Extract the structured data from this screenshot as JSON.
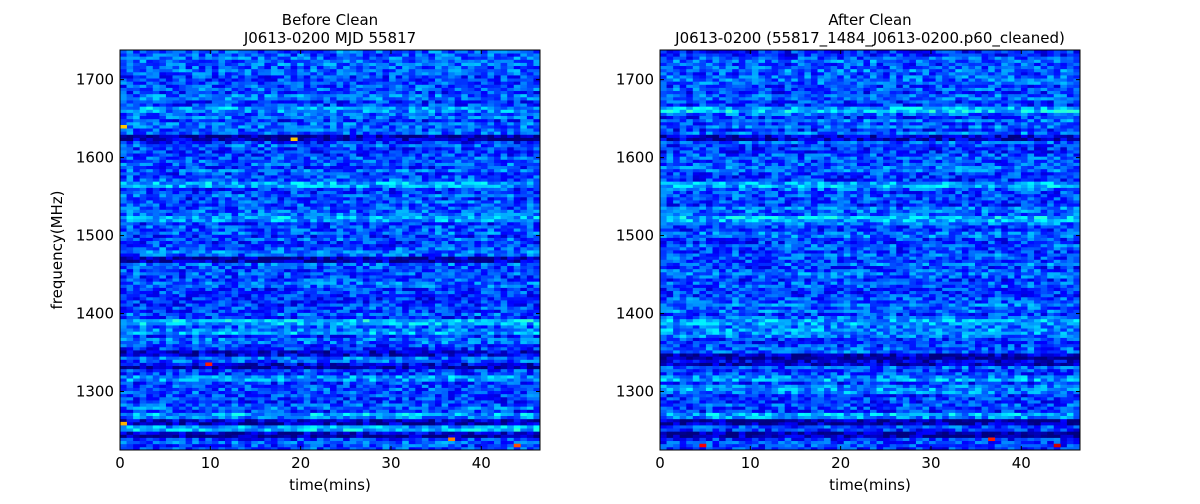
{
  "chart_data": [
    {
      "type": "heatmap",
      "title_lines": [
        "Before Clean",
        "J0613-0200 MJD 55817"
      ],
      "xlabel": "time(mins)",
      "ylabel": "frequency(MHz)",
      "xlim": [
        0,
        46.5
      ],
      "ylim": [
        1225,
        1738
      ],
      "xticks": [
        0,
        10,
        20,
        30,
        40
      ],
      "xtick_labels": [
        "0",
        "10",
        "20",
        "30",
        "40"
      ],
      "yticks": [
        1300,
        1400,
        1500,
        1600,
        1700
      ],
      "ytick_labels": [
        "1300",
        "1400",
        "1500",
        "1600",
        "1700"
      ],
      "colormap": "jet",
      "grid": false,
      "n_time_bins": 64,
      "n_freq_channels": 128,
      "bright_channels_mhz": [
        1523,
        1567,
        1663,
        1390,
        1378,
        1318,
        1270,
        1252
      ],
      "cold_channels_mhz": [
        1625,
        1470,
        1348,
        1332,
        1262,
        1245
      ],
      "hot_pixels": [
        {
          "time": 0.5,
          "freq": 1640,
          "level": 0.68
        },
        {
          "time": 19.0,
          "freq": 1623,
          "level": 0.68
        },
        {
          "time": 9.5,
          "freq": 1335,
          "level": 0.85
        },
        {
          "time": 37.0,
          "freq": 1240,
          "level": 0.75
        },
        {
          "time": 44.0,
          "freq": 1232,
          "level": 0.8
        },
        {
          "time": 0.5,
          "freq": 1258,
          "level": 0.7
        }
      ]
    },
    {
      "type": "heatmap",
      "title_lines": [
        "After Clean",
        "J0613-0200  (55817_1484_J0613-0200.p60_cleaned)"
      ],
      "xlabel": "time(mins)",
      "ylabel": "",
      "xlim": [
        0,
        46.5
      ],
      "ylim": [
        1225,
        1738
      ],
      "xticks": [
        0,
        10,
        20,
        30,
        40
      ],
      "xtick_labels": [
        "0",
        "10",
        "20",
        "30",
        "40"
      ],
      "yticks": [
        1300,
        1400,
        1500,
        1600,
        1700
      ],
      "ytick_labels": [
        "1300",
        "1400",
        "1500",
        "1600",
        "1700"
      ],
      "colormap": "jet",
      "grid": false,
      "n_time_bins": 64,
      "n_freq_channels": 128,
      "bright_channels_mhz": [
        1523,
        1567,
        1663,
        1390,
        1378,
        1318,
        1300,
        1270
      ],
      "cold_channels_mhz": [
        1625,
        1345,
        1338,
        1262,
        1245
      ],
      "hot_pixels": [
        {
          "time": 37.0,
          "freq": 1240,
          "level": 0.85
        },
        {
          "time": 44.0,
          "freq": 1232,
          "level": 0.92
        },
        {
          "time": 5.0,
          "freq": 1232,
          "level": 0.88
        }
      ]
    }
  ]
}
